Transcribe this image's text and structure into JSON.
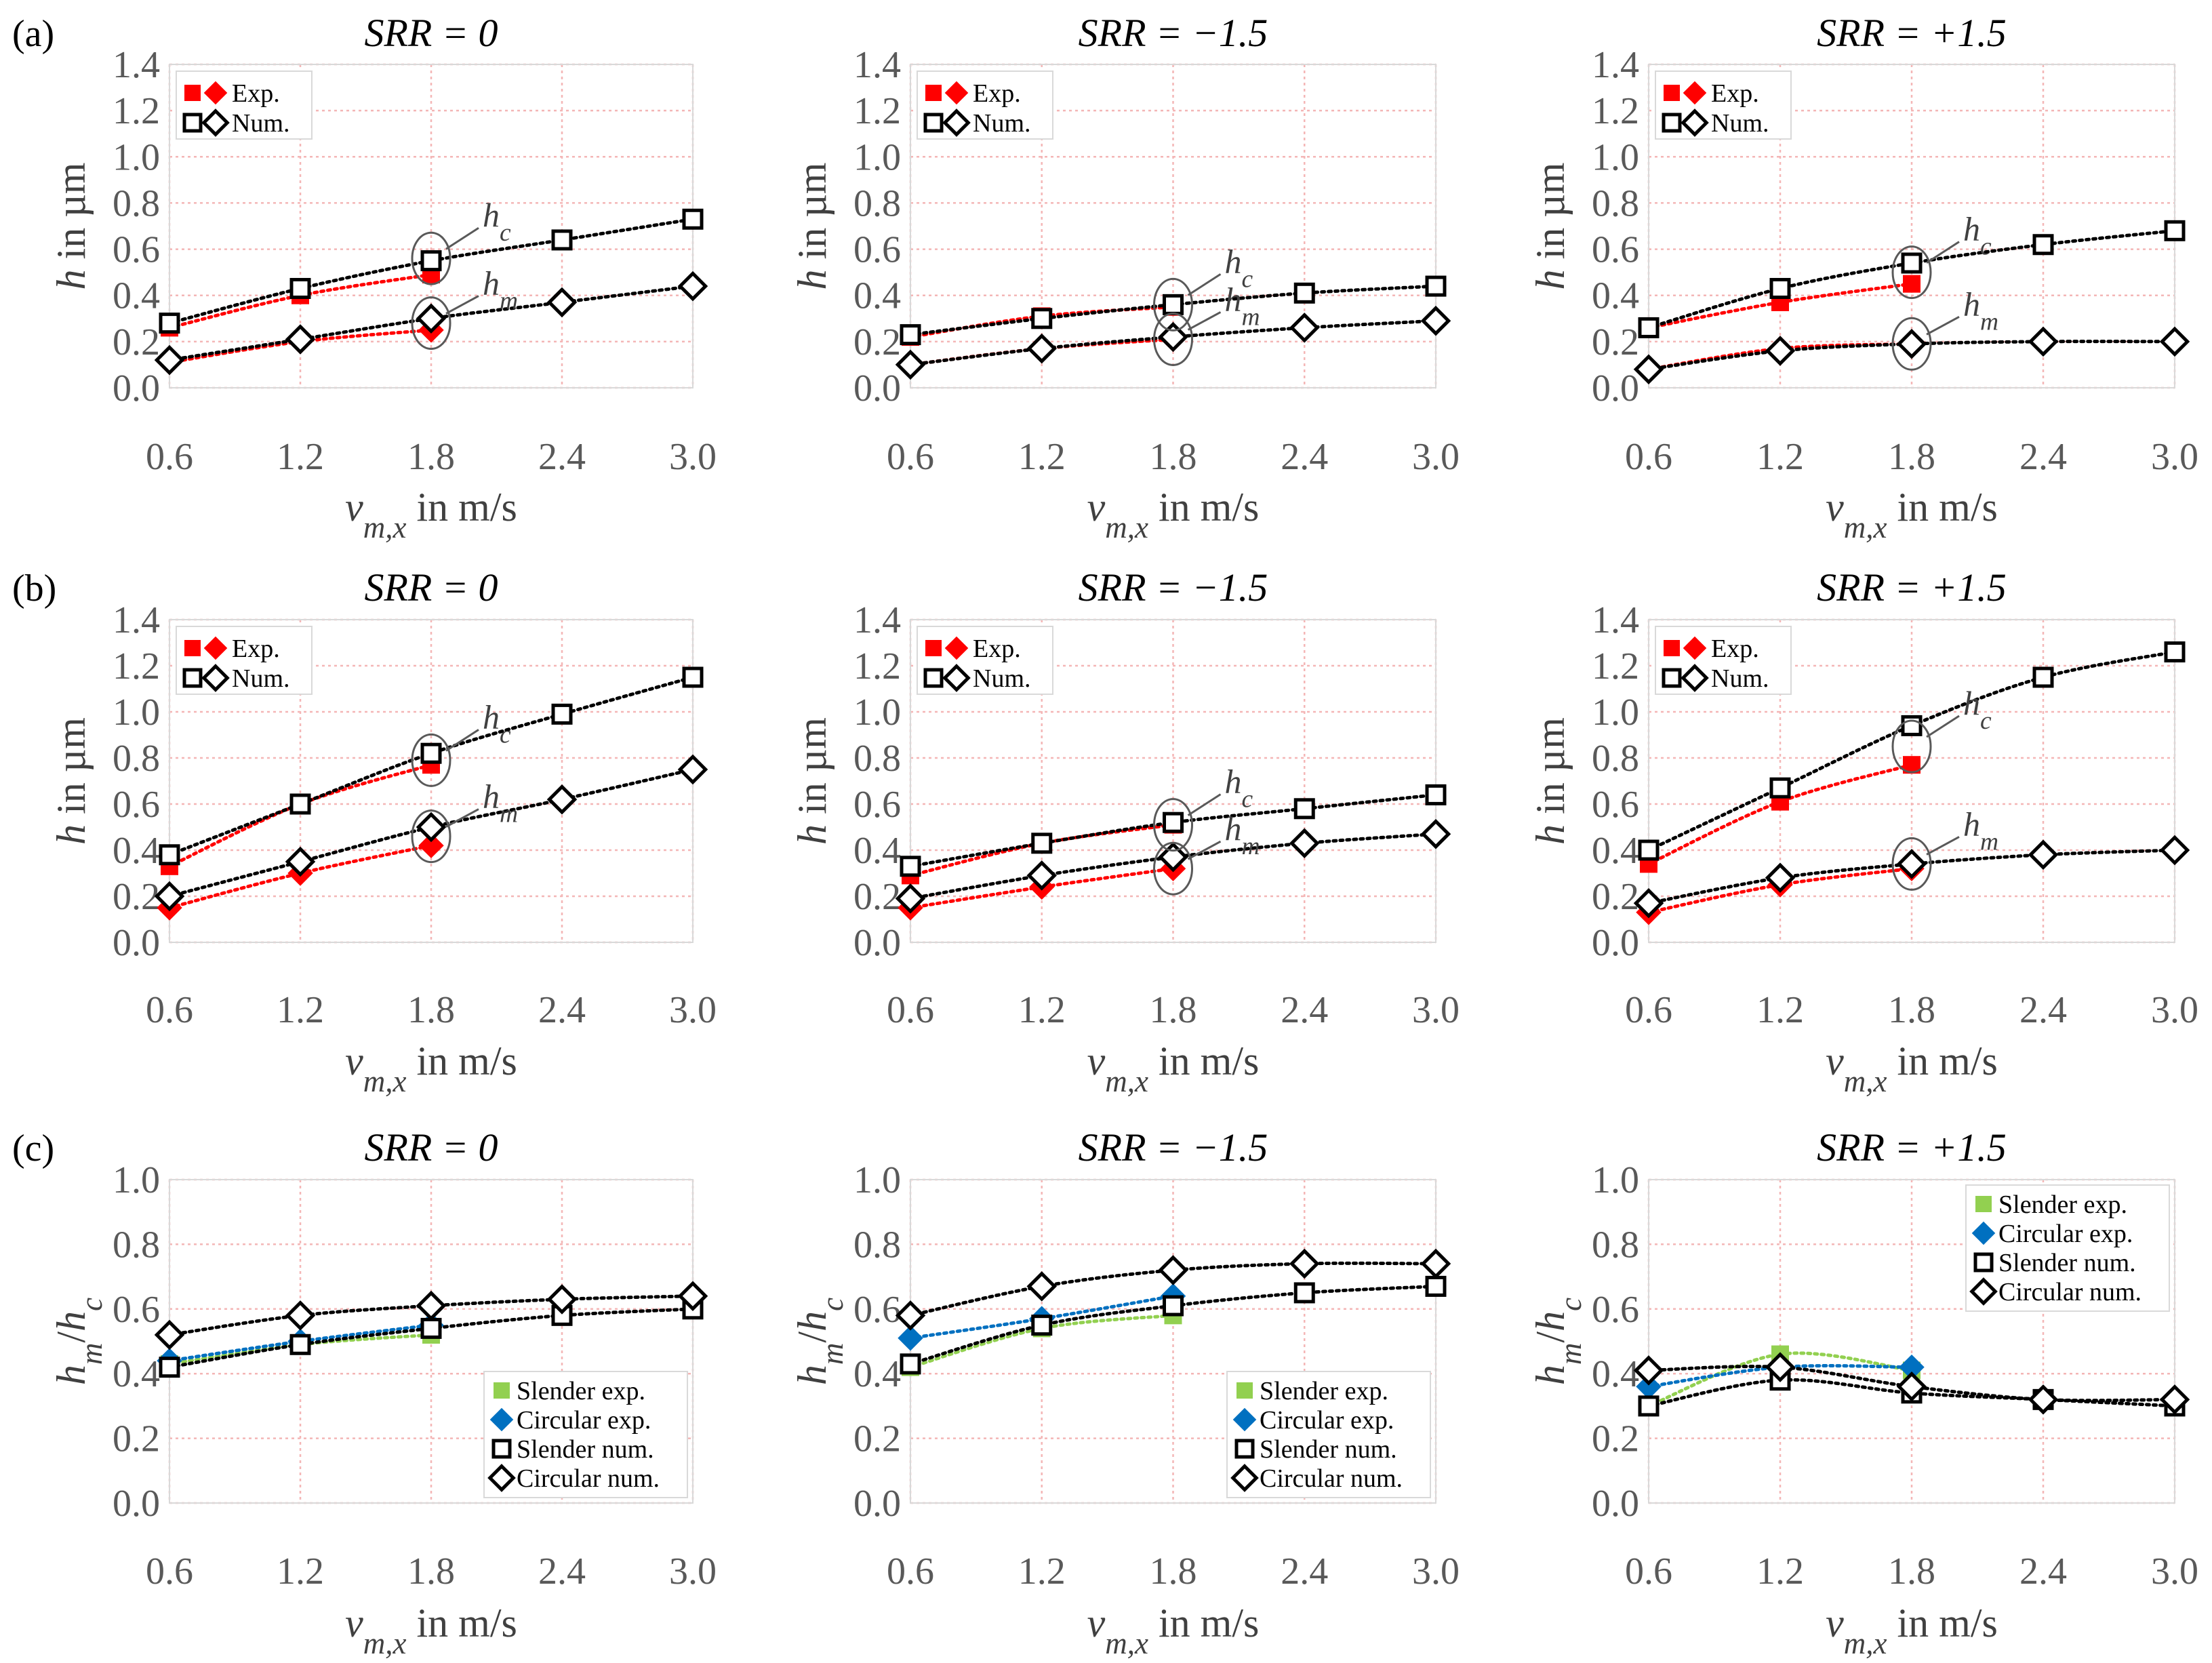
{
  "figure": {
    "row_labels": [
      "(a)",
      "(b)",
      "(c)"
    ]
  },
  "colors": {
    "experiment": "#ff0000",
    "numerical": "#000000",
    "slender_exp": "#92d050",
    "circular_exp": "#0070c0",
    "grid": "#f4b6b6"
  },
  "chart_data": [
    {
      "type": "line",
      "panel": "a-1",
      "row": "(a)",
      "title": "SRR = 0",
      "xlabel": "v_m,x in m/s",
      "ylabel": "h in µm",
      "x_ticks": [
        "0.6",
        "1.2",
        "1.8",
        "2.4",
        "3.0"
      ],
      "y_ticks": [
        "0.0",
        "0.2",
        "0.4",
        "0.6",
        "0.8",
        "1.0",
        "1.2",
        "1.4"
      ],
      "xlim": [
        0.6,
        3.0
      ],
      "ylim": [
        0,
        1.4
      ],
      "grid": true,
      "legend": {
        "position": "top-left",
        "entries": [
          "Exp.",
          "Num."
        ]
      },
      "annotations": [
        {
          "text": "h_c",
          "x": 1.8,
          "y": 0.56
        },
        {
          "text": "h_m",
          "x": 1.8,
          "y": 0.28
        }
      ],
      "series": [
        {
          "name": "Exp. h_c",
          "marker": "square",
          "color": "experiment",
          "filled": true,
          "x": [
            0.6,
            1.2,
            1.8
          ],
          "y": [
            0.26,
            0.4,
            0.49
          ]
        },
        {
          "name": "Exp. h_m",
          "marker": "diamond",
          "color": "experiment",
          "filled": true,
          "x": [
            0.6,
            1.2,
            1.8
          ],
          "y": [
            0.11,
            0.2,
            0.25
          ]
        },
        {
          "name": "Num. h_c",
          "marker": "square",
          "color": "numerical",
          "filled": false,
          "x": [
            0.6,
            1.2,
            1.8,
            2.4,
            3.0
          ],
          "y": [
            0.28,
            0.43,
            0.55,
            0.64,
            0.73
          ]
        },
        {
          "name": "Num. h_m",
          "marker": "diamond",
          "color": "numerical",
          "filled": false,
          "x": [
            0.6,
            1.2,
            1.8,
            2.4,
            3.0
          ],
          "y": [
            0.12,
            0.21,
            0.3,
            0.37,
            0.44
          ]
        }
      ]
    },
    {
      "type": "line",
      "panel": "a-2",
      "row": "(a)",
      "title": "SRR = −1.5",
      "xlabel": "v_m,x in m/s",
      "ylabel": "h in µm",
      "x_ticks": [
        "0.6",
        "1.2",
        "1.8",
        "2.4",
        "3.0"
      ],
      "y_ticks": [
        "0.0",
        "0.2",
        "0.4",
        "0.6",
        "0.8",
        "1.0",
        "1.2",
        "1.4"
      ],
      "xlim": [
        0.6,
        3.0
      ],
      "ylim": [
        0,
        1.4
      ],
      "grid": true,
      "legend": {
        "position": "top-left",
        "entries": [
          "Exp.",
          "Num."
        ]
      },
      "annotations": [
        {
          "text": "h_c",
          "x": 1.8,
          "y": 0.36
        },
        {
          "text": "h_m",
          "x": 1.8,
          "y": 0.21
        }
      ],
      "series": [
        {
          "name": "Exp. h_c",
          "marker": "square",
          "color": "experiment",
          "filled": true,
          "x": [
            0.6,
            1.2,
            1.8
          ],
          "y": [
            0.22,
            0.31,
            0.35
          ]
        },
        {
          "name": "Exp. h_m",
          "marker": "diamond",
          "color": "experiment",
          "filled": true,
          "x": [
            0.6,
            1.2,
            1.8
          ],
          "y": [
            0.1,
            0.17,
            0.21
          ]
        },
        {
          "name": "Num. h_c",
          "marker": "square",
          "color": "numerical",
          "filled": false,
          "x": [
            0.6,
            1.2,
            1.8,
            2.4,
            3.0
          ],
          "y": [
            0.23,
            0.3,
            0.36,
            0.41,
            0.44
          ]
        },
        {
          "name": "Num. h_m",
          "marker": "diamond",
          "color": "numerical",
          "filled": false,
          "x": [
            0.6,
            1.2,
            1.8,
            2.4,
            3.0
          ],
          "y": [
            0.1,
            0.17,
            0.22,
            0.26,
            0.29
          ]
        }
      ]
    },
    {
      "type": "line",
      "panel": "a-3",
      "row": "(a)",
      "title": "SRR = +1.5",
      "xlabel": "v_m,x in m/s",
      "ylabel": "h in µm",
      "x_ticks": [
        "0.6",
        "1.2",
        "1.8",
        "2.4",
        "3.0"
      ],
      "y_ticks": [
        "0.0",
        "0.2",
        "0.4",
        "0.6",
        "0.8",
        "1.0",
        "1.2",
        "1.4"
      ],
      "xlim": [
        0.6,
        3.0
      ],
      "ylim": [
        0,
        1.4
      ],
      "grid": true,
      "legend": {
        "position": "top-left",
        "entries": [
          "Exp.",
          "Num."
        ]
      },
      "annotations": [
        {
          "text": "h_c",
          "x": 1.8,
          "y": 0.5
        },
        {
          "text": "h_m",
          "x": 1.8,
          "y": 0.19
        }
      ],
      "series": [
        {
          "name": "Exp. h_c",
          "marker": "square",
          "color": "experiment",
          "filled": true,
          "x": [
            0.6,
            1.2,
            1.8
          ],
          "y": [
            0.26,
            0.37,
            0.45
          ]
        },
        {
          "name": "Exp. h_m",
          "marker": "diamond",
          "color": "experiment",
          "filled": true,
          "x": [
            0.6,
            1.2,
            1.8
          ],
          "y": [
            0.08,
            0.17,
            0.19
          ]
        },
        {
          "name": "Num. h_c",
          "marker": "square",
          "color": "numerical",
          "filled": false,
          "x": [
            0.6,
            1.2,
            1.8,
            2.4,
            3.0
          ],
          "y": [
            0.26,
            0.43,
            0.54,
            0.62,
            0.68
          ]
        },
        {
          "name": "Num. h_m",
          "marker": "diamond",
          "color": "numerical",
          "filled": false,
          "x": [
            0.6,
            1.2,
            1.8,
            2.4,
            3.0
          ],
          "y": [
            0.08,
            0.16,
            0.19,
            0.2,
            0.2
          ]
        }
      ]
    },
    {
      "type": "line",
      "panel": "b-1",
      "row": "(b)",
      "title": "SRR = 0",
      "xlabel": "v_m,x in m/s",
      "ylabel": "h in µm",
      "x_ticks": [
        "0.6",
        "1.2",
        "1.8",
        "2.4",
        "3.0"
      ],
      "y_ticks": [
        "0.0",
        "0.2",
        "0.4",
        "0.6",
        "0.8",
        "1.0",
        "1.2",
        "1.4"
      ],
      "xlim": [
        0.6,
        3.0
      ],
      "ylim": [
        0,
        1.4
      ],
      "grid": true,
      "legend": {
        "position": "top-left",
        "entries": [
          "Exp.",
          "Num."
        ]
      },
      "annotations": [
        {
          "text": "h_c",
          "x": 1.8,
          "y": 0.79
        },
        {
          "text": "h_m",
          "x": 1.8,
          "y": 0.46
        }
      ],
      "series": [
        {
          "name": "Exp. h_c",
          "marker": "square",
          "color": "experiment",
          "filled": true,
          "x": [
            0.6,
            1.2,
            1.8
          ],
          "y": [
            0.33,
            0.6,
            0.77
          ]
        },
        {
          "name": "Exp. h_m",
          "marker": "diamond",
          "color": "experiment",
          "filled": true,
          "x": [
            0.6,
            1.2,
            1.8
          ],
          "y": [
            0.15,
            0.3,
            0.42
          ]
        },
        {
          "name": "Num. h_c",
          "marker": "square",
          "color": "numerical",
          "filled": false,
          "x": [
            0.6,
            1.2,
            1.8,
            2.4,
            3.0
          ],
          "y": [
            0.38,
            0.6,
            0.82,
            0.99,
            1.15
          ]
        },
        {
          "name": "Num. h_m",
          "marker": "diamond",
          "color": "numerical",
          "filled": false,
          "x": [
            0.6,
            1.2,
            1.8,
            2.4,
            3.0
          ],
          "y": [
            0.2,
            0.35,
            0.5,
            0.62,
            0.75
          ]
        }
      ]
    },
    {
      "type": "line",
      "panel": "b-2",
      "row": "(b)",
      "title": "SRR = −1.5",
      "xlabel": "v_m,x in m/s",
      "ylabel": "h in µm",
      "x_ticks": [
        "0.6",
        "1.2",
        "1.8",
        "2.4",
        "3.0"
      ],
      "y_ticks": [
        "0.0",
        "0.2",
        "0.4",
        "0.6",
        "0.8",
        "1.0",
        "1.2",
        "1.4"
      ],
      "xlim": [
        0.6,
        3.0
      ],
      "ylim": [
        0,
        1.4
      ],
      "grid": true,
      "legend": {
        "position": "top-left",
        "entries": [
          "Exp.",
          "Num."
        ]
      },
      "annotations": [
        {
          "text": "h_c",
          "x": 1.8,
          "y": 0.51
        },
        {
          "text": "h_m",
          "x": 1.8,
          "y": 0.32
        }
      ],
      "series": [
        {
          "name": "Exp. h_c",
          "marker": "square",
          "color": "experiment",
          "filled": true,
          "x": [
            0.6,
            1.2,
            1.8
          ],
          "y": [
            0.29,
            0.43,
            0.51
          ]
        },
        {
          "name": "Exp. h_m",
          "marker": "diamond",
          "color": "experiment",
          "filled": true,
          "x": [
            0.6,
            1.2,
            1.8
          ],
          "y": [
            0.15,
            0.24,
            0.32
          ]
        },
        {
          "name": "Num. h_c",
          "marker": "square",
          "color": "numerical",
          "filled": false,
          "x": [
            0.6,
            1.2,
            1.8,
            2.4,
            3.0
          ],
          "y": [
            0.33,
            0.43,
            0.52,
            0.58,
            0.64
          ]
        },
        {
          "name": "Num. h_m",
          "marker": "diamond",
          "color": "numerical",
          "filled": false,
          "x": [
            0.6,
            1.2,
            1.8,
            2.4,
            3.0
          ],
          "y": [
            0.19,
            0.29,
            0.37,
            0.43,
            0.47
          ]
        }
      ]
    },
    {
      "type": "line",
      "panel": "b-3",
      "row": "(b)",
      "title": "SRR = +1.5",
      "xlabel": "v_m,x in m/s",
      "ylabel": "h in µm",
      "x_ticks": [
        "0.6",
        "1.2",
        "1.8",
        "2.4",
        "3.0"
      ],
      "y_ticks": [
        "0.0",
        "0.2",
        "0.4",
        "0.6",
        "0.8",
        "1.0",
        "1.2",
        "1.4"
      ],
      "xlim": [
        0.6,
        3.0
      ],
      "ylim": [
        0,
        1.4
      ],
      "grid": true,
      "legend": {
        "position": "top-left",
        "entries": [
          "Exp.",
          "Num."
        ]
      },
      "annotations": [
        {
          "text": "h_c",
          "x": 1.8,
          "y": 0.85
        },
        {
          "text": "h_m",
          "x": 1.8,
          "y": 0.34
        }
      ],
      "series": [
        {
          "name": "Exp. h_c",
          "marker": "square",
          "color": "experiment",
          "filled": true,
          "x": [
            0.6,
            1.2,
            1.8
          ],
          "y": [
            0.34,
            0.61,
            0.77
          ]
        },
        {
          "name": "Exp. h_m",
          "marker": "diamond",
          "color": "experiment",
          "filled": true,
          "x": [
            0.6,
            1.2,
            1.8
          ],
          "y": [
            0.13,
            0.25,
            0.32
          ]
        },
        {
          "name": "Num. h_c",
          "marker": "square",
          "color": "numerical",
          "filled": false,
          "x": [
            0.6,
            1.2,
            1.8,
            2.4,
            3.0
          ],
          "y": [
            0.4,
            0.67,
            0.94,
            1.15,
            1.26
          ]
        },
        {
          "name": "Num. h_m",
          "marker": "diamond",
          "color": "numerical",
          "filled": false,
          "x": [
            0.6,
            1.2,
            1.8,
            2.4,
            3.0
          ],
          "y": [
            0.17,
            0.28,
            0.34,
            0.38,
            0.4
          ]
        }
      ]
    },
    {
      "type": "line",
      "panel": "c-1",
      "row": "(c)",
      "title": "SRR = 0",
      "xlabel": "v_m,x in m/s",
      "ylabel": "h_m/h_c",
      "x_ticks": [
        "0.6",
        "1.2",
        "1.8",
        "2.4",
        "3.0"
      ],
      "y_ticks": [
        "0.0",
        "0.2",
        "0.4",
        "0.6",
        "0.8",
        "1.0"
      ],
      "xlim": [
        0.6,
        3.0
      ],
      "ylim": [
        0,
        1.0
      ],
      "grid": true,
      "legend": {
        "position": "bottom-right",
        "entries": [
          "Slender exp.",
          "Circular exp.",
          "Slender num.",
          "Circular num."
        ]
      },
      "series": [
        {
          "name": "Slender exp.",
          "marker": "square",
          "color": "slender_exp",
          "filled": true,
          "x": [
            0.6,
            1.2,
            1.8
          ],
          "y": [
            0.43,
            0.49,
            0.52
          ]
        },
        {
          "name": "Circular exp.",
          "marker": "diamond",
          "color": "circular_exp",
          "filled": true,
          "x": [
            0.6,
            1.2,
            1.8
          ],
          "y": [
            0.44,
            0.5,
            0.55
          ]
        },
        {
          "name": "Slender num.",
          "marker": "square",
          "color": "numerical",
          "filled": false,
          "x": [
            0.6,
            1.2,
            1.8,
            2.4,
            3.0
          ],
          "y": [
            0.42,
            0.49,
            0.54,
            0.58,
            0.6
          ]
        },
        {
          "name": "Circular num.",
          "marker": "diamond",
          "color": "numerical",
          "filled": false,
          "x": [
            0.6,
            1.2,
            1.8,
            2.4,
            3.0
          ],
          "y": [
            0.52,
            0.58,
            0.61,
            0.63,
            0.64
          ]
        }
      ]
    },
    {
      "type": "line",
      "panel": "c-2",
      "row": "(c)",
      "title": "SRR = −1.5",
      "xlabel": "v_m,x in m/s",
      "ylabel": "h_m/h_c",
      "x_ticks": [
        "0.6",
        "1.2",
        "1.8",
        "2.4",
        "3.0"
      ],
      "y_ticks": [
        "0.0",
        "0.2",
        "0.4",
        "0.6",
        "0.8",
        "1.0"
      ],
      "xlim": [
        0.6,
        3.0
      ],
      "ylim": [
        0,
        1.0
      ],
      "grid": true,
      "legend": {
        "position": "bottom-right",
        "entries": [
          "Slender exp.",
          "Circular exp.",
          "Slender num.",
          "Circular num."
        ]
      },
      "series": [
        {
          "name": "Slender exp.",
          "marker": "square",
          "color": "slender_exp",
          "filled": true,
          "x": [
            0.6,
            1.2,
            1.8
          ],
          "y": [
            0.42,
            0.54,
            0.58
          ]
        },
        {
          "name": "Circular exp.",
          "marker": "diamond",
          "color": "circular_exp",
          "filled": true,
          "x": [
            0.6,
            1.2,
            1.8
          ],
          "y": [
            0.51,
            0.57,
            0.64
          ]
        },
        {
          "name": "Slender num.",
          "marker": "square",
          "color": "numerical",
          "filled": false,
          "x": [
            0.6,
            1.2,
            1.8,
            2.4,
            3.0
          ],
          "y": [
            0.43,
            0.55,
            0.61,
            0.65,
            0.67
          ]
        },
        {
          "name": "Circular num.",
          "marker": "diamond",
          "color": "numerical",
          "filled": false,
          "x": [
            0.6,
            1.2,
            1.8,
            2.4,
            3.0
          ],
          "y": [
            0.58,
            0.67,
            0.72,
            0.74,
            0.74
          ]
        }
      ]
    },
    {
      "type": "line",
      "panel": "c-3",
      "row": "(c)",
      "title": "SRR = +1.5",
      "xlabel": "v_m,x in m/s",
      "ylabel": "h_m/h_c",
      "x_ticks": [
        "0.6",
        "1.2",
        "1.8",
        "2.4",
        "3.0"
      ],
      "y_ticks": [
        "0.0",
        "0.2",
        "0.4",
        "0.6",
        "0.8",
        "1.0"
      ],
      "xlim": [
        0.6,
        3.0
      ],
      "ylim": [
        0,
        1.0
      ],
      "grid": true,
      "legend": {
        "position": "top-right",
        "entries": [
          "Slender exp.",
          "Circular exp.",
          "Slender num.",
          "Circular num."
        ]
      },
      "series": [
        {
          "name": "Slender exp.",
          "marker": "square",
          "color": "slender_exp",
          "filled": true,
          "x": [
            0.6,
            1.2,
            1.8
          ],
          "y": [
            0.3,
            0.46,
            0.41
          ]
        },
        {
          "name": "Circular exp.",
          "marker": "diamond",
          "color": "circular_exp",
          "filled": true,
          "x": [
            0.6,
            1.2,
            1.8
          ],
          "y": [
            0.36,
            0.42,
            0.42
          ]
        },
        {
          "name": "Slender num.",
          "marker": "square",
          "color": "numerical",
          "filled": false,
          "x": [
            0.6,
            1.2,
            1.8,
            2.4,
            3.0
          ],
          "y": [
            0.3,
            0.38,
            0.34,
            0.32,
            0.3
          ]
        },
        {
          "name": "Circular num.",
          "marker": "diamond",
          "color": "numerical",
          "filled": false,
          "x": [
            0.6,
            1.2,
            1.8,
            2.4,
            3.0
          ],
          "y": [
            0.41,
            0.42,
            0.36,
            0.32,
            0.32
          ]
        }
      ]
    }
  ]
}
